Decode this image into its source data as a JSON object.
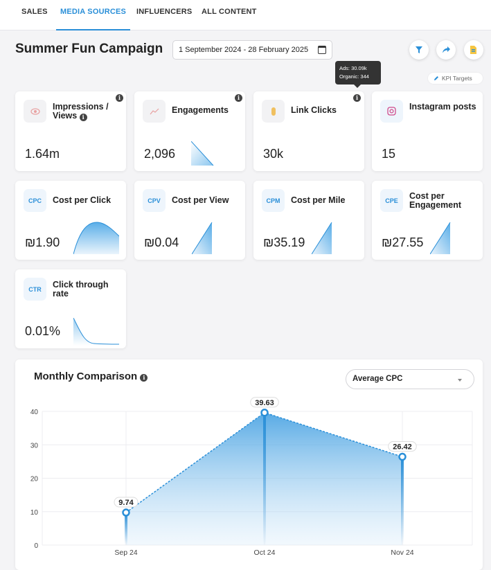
{
  "nav": {
    "tabs": [
      {
        "label": "SALES"
      },
      {
        "label": "MEDIA SOURCES"
      },
      {
        "label": "INFLUENCERS"
      },
      {
        "label": "ALL CONTENT"
      }
    ]
  },
  "header": {
    "title": "Summer Fun Campaign",
    "date_range": "1 September 2024 - 28 February 2025",
    "actions": [
      "filter-icon",
      "share-icon",
      "export-icon"
    ]
  },
  "tooltip": {
    "line1": "Ads: 30.09k",
    "line2": "Organic: 344"
  },
  "kpi_targets_label": "KPI Targets",
  "cards": [
    {
      "id": "impressions",
      "label": "Impressions / Views",
      "value": "1.64m",
      "icon": "eye-icon"
    },
    {
      "id": "engagements",
      "label": "Engagements",
      "value": "2,096",
      "icon": "trend-icon"
    },
    {
      "id": "link-clicks",
      "label": "Link Clicks",
      "value": "30k",
      "icon": "hand-icon"
    },
    {
      "id": "instagram-posts",
      "label": "Instagram posts",
      "value": "15",
      "icon": "instagram-icon"
    },
    {
      "id": "cpc",
      "badge": "CPC",
      "label": "Cost per Click",
      "value": "₪1.90"
    },
    {
      "id": "cpv",
      "badge": "CPV",
      "label": "Cost per View",
      "value": "₪0.04"
    },
    {
      "id": "cpm",
      "badge": "CPM",
      "label": "Cost per Mile",
      "value": "₪35.19"
    },
    {
      "id": "cpe",
      "badge": "CPE",
      "label": "Cost per Engagement",
      "value": "₪27.55"
    },
    {
      "id": "ctr",
      "badge": "CTR",
      "label": "Click through rate",
      "value": "0.01%"
    }
  ],
  "monthly": {
    "title": "Monthly Comparison",
    "metric_select": "Average CPC"
  },
  "chart_data": {
    "type": "area",
    "categories": [
      "Sep 24",
      "Oct 24",
      "Nov 24"
    ],
    "values": [
      9.74,
      39.63,
      26.42
    ],
    "value_labels": [
      "9.74",
      "39.63",
      "26.42"
    ],
    "y_ticks": [
      "0",
      "10",
      "20",
      "30",
      "40"
    ],
    "ylim": [
      0,
      40
    ],
    "grid": true,
    "color": "#2a8fd8"
  }
}
